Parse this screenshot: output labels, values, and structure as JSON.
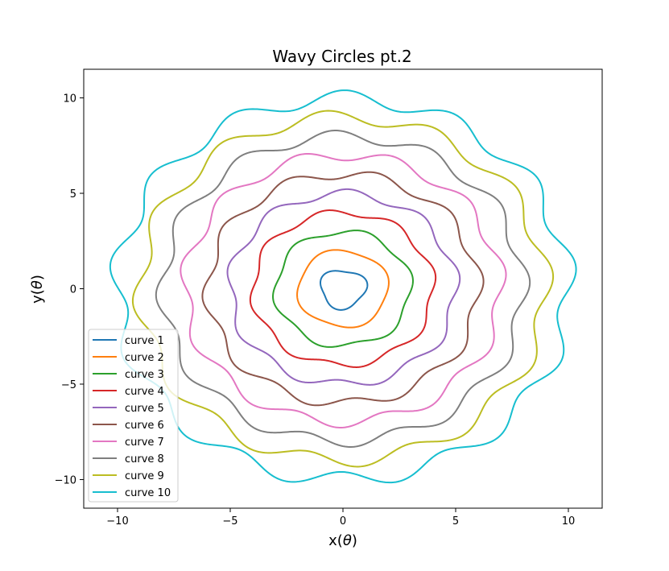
{
  "chart_data": {
    "type": "line",
    "title": "Wavy Circles pt.2",
    "xlabel_text": "x",
    "xlabel_var": "θ",
    "ylabel_text": "y",
    "ylabel_var": "θ",
    "xlim": [
      -11.5,
      11.5
    ],
    "ylim": [
      -11.5,
      11.5
    ],
    "xticks": [
      -10,
      -5,
      0,
      5,
      10
    ],
    "yticks": [
      -10,
      -5,
      0,
      5,
      10
    ],
    "xtick_labels": [
      "−10",
      "−5",
      "0",
      "5",
      "10"
    ],
    "ytick_labels": [
      "−10",
      "−5",
      "0",
      "5",
      "10"
    ],
    "grid": false,
    "legend_position": "lower-left",
    "curve_model": "r(θ) = n + a_n·sin(k_n·θ + φ_n), θ ∈ [0, 2π]",
    "series": [
      {
        "name": "curve 1",
        "color": "#1f77b4",
        "base_radius": 1,
        "wave_amplitude": 0.12,
        "wave_count": 3,
        "wave_phase": 0.5
      },
      {
        "name": "curve 2",
        "color": "#ff7f0e",
        "base_radius": 2,
        "wave_amplitude": 0.1,
        "wave_count": 4,
        "wave_phase": 0.0
      },
      {
        "name": "curve 3",
        "color": "#2ca02c",
        "base_radius": 3,
        "wave_amplitude": 0.15,
        "wave_count": 6,
        "wave_phase": 0.3
      },
      {
        "name": "curve 4",
        "color": "#d62728",
        "base_radius": 4,
        "wave_amplitude": 0.17,
        "wave_count": 8,
        "wave_phase": 0.0
      },
      {
        "name": "curve 5",
        "color": "#9467bd",
        "base_radius": 5,
        "wave_amplitude": 0.22,
        "wave_count": 9,
        "wave_phase": 0.4
      },
      {
        "name": "curve 6",
        "color": "#8c564b",
        "base_radius": 6,
        "wave_amplitude": 0.25,
        "wave_count": 10,
        "wave_phase": 0.8
      },
      {
        "name": "curve 7",
        "color": "#e377c2",
        "base_radius": 7,
        "wave_amplitude": 0.28,
        "wave_count": 11,
        "wave_phase": 0.2
      },
      {
        "name": "curve 8",
        "color": "#7f7f7f",
        "base_radius": 8,
        "wave_amplitude": 0.3,
        "wave_count": 12,
        "wave_phase": 1.0
      },
      {
        "name": "curve 9",
        "color": "#bcbd22",
        "base_radius": 9,
        "wave_amplitude": 0.35,
        "wave_count": 12,
        "wave_phase": 0.6
      },
      {
        "name": "curve 10",
        "color": "#17becf",
        "base_radius": 10,
        "wave_amplitude": 0.4,
        "wave_count": 13,
        "wave_phase": 0.1
      }
    ]
  }
}
